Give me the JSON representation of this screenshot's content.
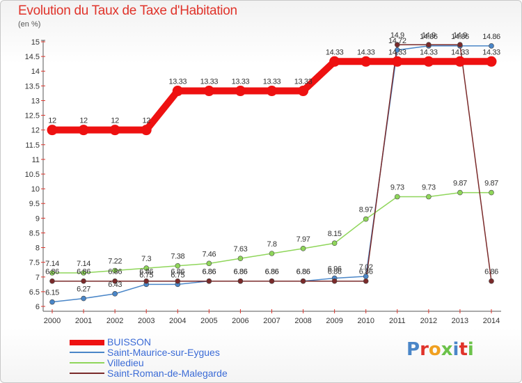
{
  "title": "Evolution du Taux de Taxe d'Habitation",
  "unit_label": "(en %)",
  "brand": {
    "text": "Proxiti",
    "letter_colors": [
      "#4a86c8",
      "#e0332a",
      "#f0a020",
      "#6cc24a",
      "#4a86c8",
      "#e0332a",
      "#6cc24a"
    ]
  },
  "chart_data": {
    "type": "line",
    "x": [
      2000,
      2001,
      2002,
      2003,
      2004,
      2005,
      2006,
      2007,
      2008,
      2009,
      2010,
      2011,
      2012,
      2013,
      2014
    ],
    "ylim": [
      6,
      15
    ],
    "y_ticks": [
      6,
      6.5,
      7,
      7.5,
      8,
      8.5,
      9,
      9.5,
      10,
      10.5,
      11,
      11.5,
      12,
      12.5,
      13,
      13.5,
      14,
      14.5,
      15
    ],
    "y_tick_labels": [
      "6",
      "6.5",
      "7",
      "7.5",
      "8",
      "8.5",
      "9",
      "9.5",
      "10",
      "10.5",
      "11",
      "11.5",
      "12",
      "12.5",
      "13",
      "13.5",
      "14",
      "14.5",
      "15"
    ],
    "grid": false,
    "legend_position": "bottom-left",
    "series": [
      {
        "name": "BUISSON",
        "color": "#ee1111",
        "values": [
          12,
          12,
          12,
          12,
          13.33,
          13.33,
          13.33,
          13.33,
          13.33,
          14.33,
          14.33,
          14.33,
          14.33,
          14.33,
          14.33
        ],
        "labels": [
          "12",
          "12",
          "12",
          "12",
          "13.33",
          "13.33",
          "13.33",
          "13.33",
          "13.33",
          "14.33",
          "14.33",
          "14.33",
          "14.33",
          "14.33",
          "14.33"
        ]
      },
      {
        "name": "Saint-Maurice-sur-Eygues",
        "color": "#4a86c8",
        "values": [
          6.15,
          6.27,
          6.43,
          6.75,
          6.75,
          6.86,
          6.86,
          6.86,
          6.86,
          6.96,
          7.02,
          14.72,
          14.86,
          14.86,
          14.86
        ],
        "labels": [
          "6.15",
          "6.27",
          "6.43",
          "6.75",
          "6.75",
          "6.86",
          "6.86",
          "6.86",
          "6.86",
          "6.96",
          "7.02",
          "14.72",
          "14.86",
          "14.86",
          "14.86"
        ]
      },
      {
        "name": "Villedieu",
        "color": "#8fd65a",
        "values": [
          7.14,
          7.14,
          7.22,
          7.3,
          7.38,
          7.46,
          7.63,
          7.8,
          7.97,
          8.15,
          8.97,
          9.73,
          9.73,
          9.87,
          9.87
        ],
        "labels": [
          "7.14",
          "7.14",
          "7.22",
          "7.3",
          "7.38",
          "7.46",
          "7.63",
          "7.8",
          "7.97",
          "8.15",
          "8.97",
          "9.73",
          "9.73",
          "9.87",
          "9.87"
        ]
      },
      {
        "name": "Saint-Roman-de-Malegarde",
        "color": "#7a2a2a",
        "values": [
          6.86,
          6.86,
          6.86,
          6.86,
          6.86,
          6.86,
          6.86,
          6.86,
          6.86,
          6.86,
          6.86,
          14.9,
          14.9,
          14.9,
          6.86
        ],
        "labels": [
          "6.86",
          "6.86",
          "6.86",
          "6.86",
          "6.86",
          "6.86",
          "6.86",
          "6.86",
          "6.86",
          "6.86",
          "6.86",
          "14.9",
          "14.9",
          "14.9",
          "6.86"
        ]
      }
    ]
  }
}
